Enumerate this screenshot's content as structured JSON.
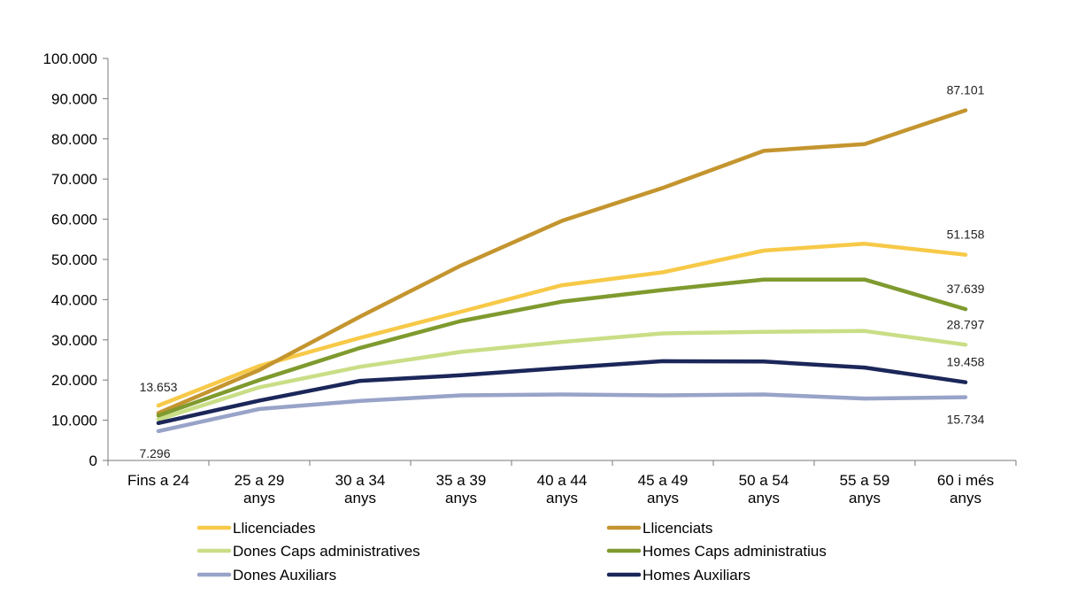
{
  "chart_data": {
    "type": "line",
    "title": "",
    "xlabel": "",
    "ylabel": "",
    "ylim": [
      0,
      100000
    ],
    "yticks": [
      0,
      10000,
      20000,
      30000,
      40000,
      50000,
      60000,
      70000,
      80000,
      90000,
      100000
    ],
    "ytick_labels": [
      "0",
      "10.000",
      "20.000",
      "30.000",
      "40.000",
      "50.000",
      "60.000",
      "70.000",
      "80.000",
      "90.000",
      "100.000"
    ],
    "grid": false,
    "legend_position": "bottom",
    "categories": [
      [
        "Fins a 24"
      ],
      [
        "25 a 29",
        "anys"
      ],
      [
        "30 a 34",
        "anys"
      ],
      [
        "35 a 39",
        "anys"
      ],
      [
        "40 a 44",
        "anys"
      ],
      [
        "45 a 49",
        "anys"
      ],
      [
        "50 a 54",
        "anys"
      ],
      [
        "55 a 59",
        "anys"
      ],
      [
        "60 i més",
        "anys"
      ]
    ],
    "series": [
      {
        "name": "Llicenciades",
        "color": "#F7C948",
        "values": [
          13653,
          23500,
          30500,
          37000,
          43600,
          46800,
          52200,
          53900,
          51158
        ]
      },
      {
        "name": "Llicenciats",
        "color": "#C4952F",
        "values": [
          11800,
          22500,
          35800,
          48500,
          59600,
          67800,
          77000,
          78700,
          87101
        ]
      },
      {
        "name": "Dones Caps administratives",
        "color": "#C9DE86",
        "values": [
          10200,
          18200,
          23300,
          27000,
          29500,
          31600,
          32000,
          32200,
          28797
        ]
      },
      {
        "name": "Homes Caps administratius",
        "color": "#7F9A2E",
        "values": [
          11200,
          20000,
          28000,
          34700,
          39500,
          42400,
          45000,
          45000,
          37639
        ]
      },
      {
        "name": "Dones Auxiliars",
        "color": "#98A3C8",
        "values": [
          7296,
          12800,
          14800,
          16200,
          16400,
          16200,
          16400,
          15400,
          15734
        ]
      },
      {
        "name": "Homes Auxiliars",
        "color": "#1B2659",
        "values": [
          9300,
          14900,
          19800,
          21200,
          23000,
          24700,
          24600,
          23100,
          19458
        ]
      }
    ],
    "annotations": [
      {
        "text": "13.653",
        "series": "Llicenciades",
        "index": 0
      },
      {
        "text": "7.296",
        "series": "Dones Auxiliars",
        "index": 0
      },
      {
        "text": "87.101",
        "series": "Llicenciats",
        "index": 8
      },
      {
        "text": "51.158",
        "series": "Llicenciades",
        "index": 8
      },
      {
        "text": "37.639",
        "series": "Homes Caps administratius",
        "index": 8
      },
      {
        "text": "28.797",
        "series": "Dones Caps administratives",
        "index": 8
      },
      {
        "text": "19.458",
        "series": "Homes Auxiliars",
        "index": 8
      },
      {
        "text": "15.734",
        "series": "Dones Auxiliars",
        "index": 8
      }
    ]
  }
}
